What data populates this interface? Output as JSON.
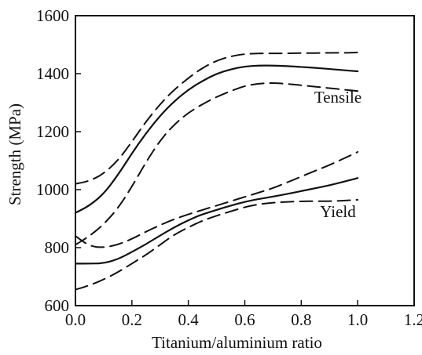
{
  "chart_data": {
    "type": "line",
    "title": "",
    "xlabel": "Titanium/aluminium ratio",
    "ylabel": "Strength (MPa)",
    "xlim": [
      0.0,
      1.2
    ],
    "ylim": [
      600,
      1600
    ],
    "x_ticks": [
      "0.0",
      "0.2",
      "0.4",
      "0.6",
      "0.8",
      "1.0",
      "1.2"
    ],
    "y_ticks": [
      "600",
      "800",
      "1000",
      "1200",
      "1400",
      "1600"
    ],
    "grid": false,
    "annotations": [
      {
        "text": "Tensile",
        "x": 0.93,
        "y": 1300
      },
      {
        "text": "Yield",
        "x": 0.93,
        "y": 905
      }
    ],
    "series": [
      {
        "style": "solid",
        "x": [
          0.0,
          0.05,
          0.1,
          0.15,
          0.2,
          0.25,
          0.3,
          0.35,
          0.4,
          0.45,
          0.5,
          0.55,
          0.6,
          0.65,
          0.7,
          0.75,
          0.8,
          0.85,
          0.9,
          0.95,
          1.0
        ],
        "y": [
          920,
          945,
          985,
          1050,
          1125,
          1195,
          1255,
          1305,
          1345,
          1375,
          1400,
          1415,
          1425,
          1428,
          1428,
          1426,
          1423,
          1420,
          1416,
          1412,
          1408
        ]
      },
      {
        "style": "dashed",
        "x": [
          0.0,
          0.05,
          0.1,
          0.15,
          0.2,
          0.25,
          0.3,
          0.35,
          0.4,
          0.45,
          0.5,
          0.55,
          0.6,
          0.65,
          0.7,
          0.75,
          0.8,
          0.85,
          0.9,
          0.95,
          1.0
        ],
        "y": [
          1020,
          1030,
          1055,
          1100,
          1165,
          1235,
          1295,
          1345,
          1385,
          1420,
          1445,
          1460,
          1468,
          1470,
          1470,
          1470,
          1471,
          1471,
          1472,
          1472,
          1473
        ]
      },
      {
        "style": "dashed",
        "x": [
          0.0,
          0.05,
          0.1,
          0.15,
          0.2,
          0.25,
          0.3,
          0.35,
          0.4,
          0.45,
          0.5,
          0.55,
          0.6,
          0.65,
          0.7,
          0.75,
          0.8,
          0.85,
          0.9,
          0.95,
          1.0
        ],
        "y": [
          810,
          840,
          880,
          935,
          1010,
          1095,
          1170,
          1225,
          1265,
          1295,
          1320,
          1340,
          1358,
          1366,
          1368,
          1365,
          1360,
          1355,
          1350,
          1345,
          1340
        ]
      },
      {
        "style": "solid",
        "x": [
          0.0,
          0.05,
          0.1,
          0.15,
          0.2,
          0.25,
          0.3,
          0.35,
          0.4,
          0.45,
          0.5,
          0.55,
          0.6,
          0.65,
          0.7,
          0.75,
          0.8,
          0.85,
          0.9,
          0.95,
          1.0
        ],
        "y": [
          745,
          745,
          746,
          760,
          785,
          812,
          842,
          870,
          895,
          915,
          930,
          945,
          958,
          968,
          976,
          985,
          995,
          1005,
          1015,
          1027,
          1040
        ]
      },
      {
        "style": "dashed",
        "x": [
          0.0,
          0.05,
          0.1,
          0.15,
          0.2,
          0.25,
          0.3,
          0.35,
          0.4,
          0.45,
          0.5,
          0.55,
          0.6,
          0.65,
          0.7,
          0.75,
          0.8,
          0.85,
          0.9,
          0.95,
          1.0
        ],
        "y": [
          840,
          805,
          800,
          810,
          830,
          855,
          878,
          898,
          915,
          930,
          945,
          960,
          975,
          990,
          1005,
          1025,
          1045,
          1065,
          1085,
          1107,
          1130
        ]
      },
      {
        "style": "dashed",
        "x": [
          0.0,
          0.05,
          0.1,
          0.15,
          0.2,
          0.25,
          0.3,
          0.35,
          0.4,
          0.45,
          0.5,
          0.55,
          0.6,
          0.65,
          0.7,
          0.75,
          0.8,
          0.85,
          0.9,
          0.95,
          1.0
        ],
        "y": [
          655,
          670,
          690,
          715,
          745,
          775,
          810,
          845,
          870,
          893,
          910,
          925,
          940,
          950,
          955,
          958,
          960,
          960,
          960,
          962,
          965
        ]
      }
    ]
  }
}
